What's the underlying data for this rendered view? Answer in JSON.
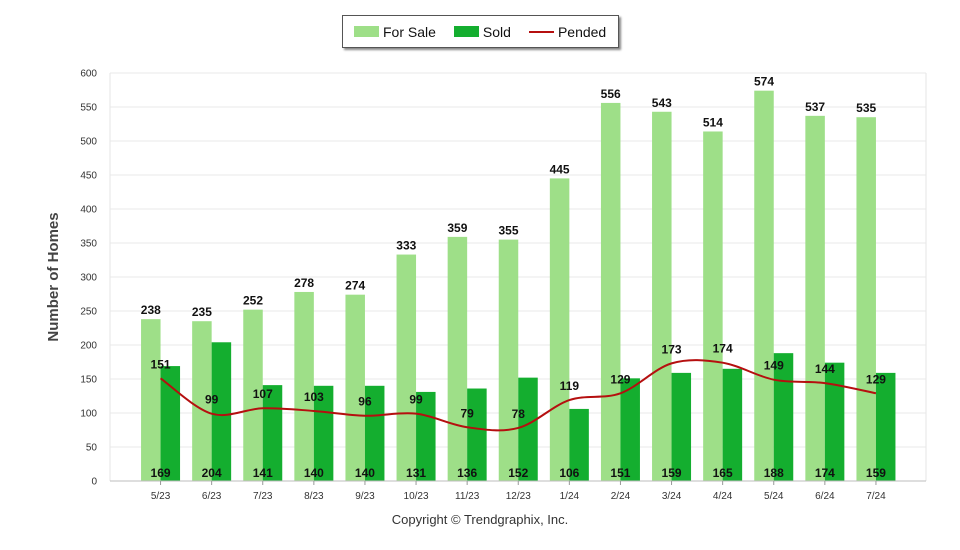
{
  "footer": "Copyright © Trendgraphix, Inc.",
  "chart_data": {
    "type": "bar",
    "categories": [
      "5/23",
      "6/23",
      "7/23",
      "8/23",
      "9/23",
      "10/23",
      "11/23",
      "12/23",
      "1/24",
      "2/24",
      "3/24",
      "4/24",
      "5/24",
      "6/24",
      "7/24"
    ],
    "series": [
      {
        "name": "For Sale",
        "kind": "bar",
        "color": "#9edf88",
        "values": [
          238,
          235,
          252,
          278,
          274,
          333,
          359,
          355,
          445,
          556,
          543,
          514,
          574,
          537,
          535
        ]
      },
      {
        "name": "Sold",
        "kind": "bar",
        "color": "#14ae2f",
        "values": [
          169,
          204,
          141,
          140,
          140,
          131,
          136,
          152,
          106,
          151,
          159,
          165,
          188,
          174,
          159
        ]
      },
      {
        "name": "Pended",
        "kind": "line",
        "color": "#b50f0f",
        "values": [
          151,
          99,
          107,
          103,
          96,
          99,
          79,
          78,
          119,
          129,
          173,
          174,
          149,
          144,
          129
        ]
      }
    ],
    "ylabel": "Number of Homes",
    "ylim": [
      0,
      600
    ],
    "yticks": [
      0,
      50,
      100,
      150,
      200,
      250,
      300,
      350,
      400,
      450,
      500,
      550,
      600
    ],
    "grid": true,
    "legend": "top-center"
  }
}
